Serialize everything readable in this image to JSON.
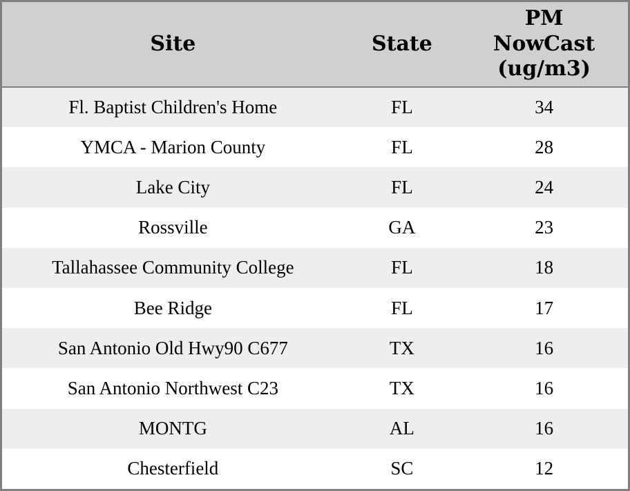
{
  "chart_data": {
    "type": "table",
    "title": "",
    "columns": [
      "Site",
      "State",
      "PM NowCast (ug/m3)"
    ],
    "rows": [
      [
        "Fl. Baptist Children's Home",
        "FL",
        "34"
      ],
      [
        "YMCA - Marion County",
        "FL",
        "28"
      ],
      [
        "Lake City",
        "FL",
        "24"
      ],
      [
        "Rossville",
        "GA",
        "23"
      ],
      [
        "Tallahassee Community College",
        "FL",
        "18"
      ],
      [
        "Bee Ridge",
        "FL",
        "17"
      ],
      [
        "San Antonio Old Hwy90 C677",
        "TX",
        "16"
      ],
      [
        "San Antonio Northwest C23",
        "TX",
        "16"
      ],
      [
        "MONTG",
        "AL",
        "16"
      ],
      [
        "Chesterfield",
        "SC",
        "12"
      ]
    ],
    "layout_hints": {
      "striped_rows": true,
      "stripe_pattern": "odd rows gray, even rows white",
      "cell_alignment": "center",
      "header_wraps_to_three_lines": true
    }
  },
  "colors": {
    "border": "#808080",
    "header_bg": "#d0d0d0",
    "row_alt_bg": "#eeeeee",
    "row_bg": "#ffffff",
    "text": "#000000"
  }
}
